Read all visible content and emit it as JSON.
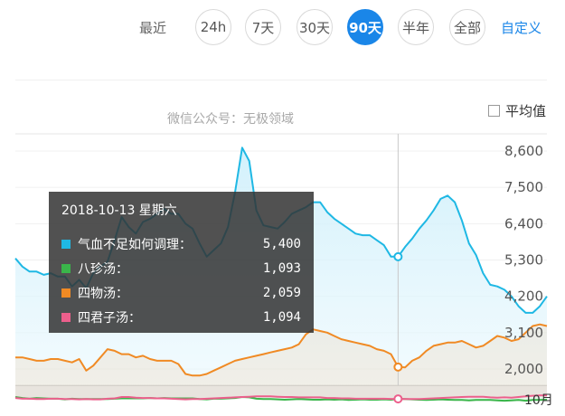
{
  "toolbar": {
    "recent_label": "最近",
    "ranges": [
      "24h",
      "7天",
      "30天",
      "90天",
      "半年",
      "全部"
    ],
    "active_range": "90天",
    "custom_label": "自定义"
  },
  "watermark": "微信公众号：无极领域",
  "avg_toggle_label": "平均值",
  "tooltip": {
    "date": "2018-10-13 星期六",
    "rows": [
      {
        "name": "气血不足如何调理：",
        "value": "5,400",
        "color": "#1fb8e4"
      },
      {
        "name": "八珍汤：",
        "value": "1,093",
        "color": "#3ab54a"
      },
      {
        "name": "四物汤：",
        "value": "2,059",
        "color": "#f08a24"
      },
      {
        "name": "四君子汤：",
        "value": "1,094",
        "color": "#ec5f8c"
      }
    ]
  },
  "chart_data": {
    "type": "line",
    "y_ticks": [
      "8,600",
      "7,500",
      "6,400",
      "5,300",
      "4,200",
      "3,100",
      "2,000"
    ],
    "ylim": [
      2000,
      8600
    ],
    "x_tick_label": "10月",
    "series": [
      {
        "name": "气血不足如何调理",
        "color": "#1fb8e4",
        "values": [
          5350,
          5100,
          4950,
          4950,
          4850,
          4900,
          4800,
          4800,
          4500,
          4700,
          4450,
          4900,
          5100,
          5250,
          5900,
          6600,
          6300,
          6100,
          6450,
          6550,
          6700,
          6850,
          6700,
          6700,
          6400,
          6250,
          5800,
          5400,
          5600,
          5800,
          6300,
          7350,
          8700,
          8300,
          6800,
          6350,
          6300,
          6250,
          6450,
          6700,
          6800,
          6900,
          7050,
          7050,
          6750,
          6550,
          6400,
          6250,
          6100,
          6050,
          6050,
          5900,
          5750,
          5400,
          5400,
          5700,
          5950,
          6250,
          6500,
          6800,
          7150,
          7250,
          7050,
          6500,
          5800,
          5450,
          4900,
          4550,
          4500,
          4400,
          4200,
          3900,
          3700,
          3700,
          3900,
          4200
        ]
      },
      {
        "name": "八珍汤",
        "color": "#3ab54a",
        "values": [
          1150,
          1120,
          1100,
          1120,
          1110,
          1100,
          1100,
          1080,
          1100,
          1090,
          1090,
          1090,
          1090,
          1090,
          1100,
          1110,
          1110,
          1110,
          1110,
          1120,
          1110,
          1120,
          1110,
          1110,
          1110,
          1110,
          1090,
          1080,
          1100,
          1100,
          1110,
          1120,
          1150,
          1140,
          1100,
          1090,
          1090,
          1080,
          1070,
          1080,
          1090,
          1080,
          1070,
          1070,
          1080,
          1070,
          1080,
          1060,
          1070,
          1080,
          1070,
          1070,
          1080,
          1070,
          1093,
          1090,
          1080,
          1070,
          1060,
          1070,
          1080,
          1070,
          1060,
          1060,
          1050,
          1060,
          1060,
          1060,
          1050,
          1040,
          1050,
          1060,
          1040,
          1060,
          1060,
          1070
        ]
      },
      {
        "name": "四物汤",
        "color": "#f08a24",
        "values": [
          2350,
          2350,
          2300,
          2250,
          2250,
          2300,
          2300,
          2250,
          2200,
          2300,
          1950,
          2100,
          2350,
          2600,
          2550,
          2450,
          2450,
          2350,
          2400,
          2300,
          2250,
          2250,
          2250,
          2150,
          1850,
          1800,
          1800,
          1850,
          1950,
          2050,
          2150,
          2250,
          2300,
          2350,
          2400,
          2450,
          2500,
          2550,
          2600,
          2650,
          2750,
          3050,
          3200,
          3150,
          3100,
          3000,
          2900,
          2850,
          2800,
          2750,
          2700,
          2600,
          2550,
          2450,
          2059,
          2050,
          2250,
          2350,
          2550,
          2700,
          2750,
          2800,
          2800,
          2850,
          2750,
          2650,
          2700,
          2850,
          3000,
          2950,
          2850,
          2900,
          3100,
          3300,
          3350,
          3300
        ]
      },
      {
        "name": "四君子汤",
        "color": "#ec5f8c",
        "values": [
          1120,
          1100,
          1100,
          1090,
          1090,
          1100,
          1100,
          1090,
          1090,
          1080,
          1090,
          1080,
          1080,
          1100,
          1110,
          1150,
          1150,
          1130,
          1120,
          1120,
          1110,
          1110,
          1100,
          1090,
          1080,
          1090,
          1090,
          1100,
          1110,
          1120,
          1130,
          1140,
          1150,
          1160,
          1170,
          1170,
          1170,
          1160,
          1150,
          1150,
          1140,
          1140,
          1140,
          1140,
          1120,
          1120,
          1110,
          1110,
          1100,
          1100,
          1100,
          1100,
          1100,
          1094,
          1094,
          1090,
          1090,
          1090,
          1100,
          1110,
          1120,
          1130,
          1140,
          1150,
          1160,
          1160,
          1160,
          1140,
          1130,
          1140,
          1130,
          1150,
          1170,
          1190,
          1200,
          1200
        ]
      }
    ],
    "hover_index": 54
  }
}
